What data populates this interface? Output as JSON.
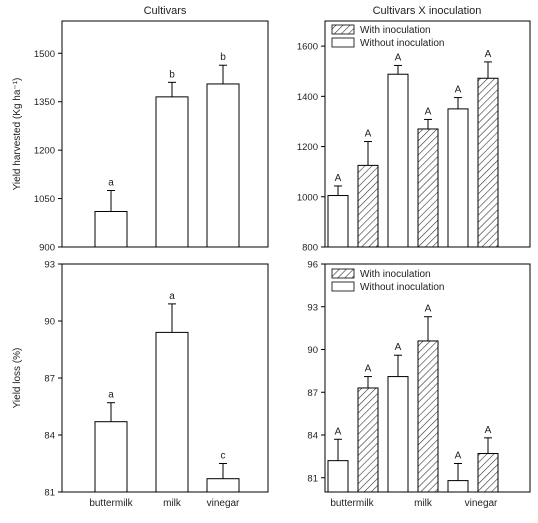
{
  "chart_data": [
    {
      "type": "bar",
      "title": "Cultivars",
      "ylabel": "Yield harvested (Kg ha⁻¹)",
      "ylim": [
        900,
        1600
      ],
      "yticks": [
        "900",
        "1050",
        "1200",
        "1350",
        "1500"
      ],
      "categories": [
        "buttermilk",
        "milk",
        "vinegar"
      ],
      "values": [
        1010,
        1365,
        1405
      ],
      "errors": [
        65,
        45,
        58
      ],
      "letters": [
        "a",
        "b",
        "b"
      ]
    },
    {
      "type": "bar",
      "title": "Cultivars X inoculation",
      "ylabel": "",
      "ylim": [
        800,
        1700
      ],
      "yticks": [
        "800",
        "1000",
        "1200",
        "1400",
        "1600"
      ],
      "categories": [
        "buttermilk",
        "milk",
        "vinegar"
      ],
      "legend": [
        "With inoculation",
        "Without inoculation"
      ],
      "series": [
        {
          "name": "Without inoculation",
          "values": [
            1005,
            1488,
            1350
          ],
          "errors": [
            38,
            35,
            45
          ],
          "letters": [
            "A",
            "A",
            "A"
          ]
        },
        {
          "name": "With inoculation",
          "values": [
            1125,
            1270,
            1472
          ],
          "errors": [
            95,
            38,
            65
          ],
          "letters": [
            "A",
            "A",
            "A"
          ]
        }
      ]
    },
    {
      "type": "bar",
      "title": "",
      "ylabel": "Yield loss (%)",
      "ylim": [
        81,
        93
      ],
      "yticks": [
        "81",
        "84",
        "87",
        "90",
        "93"
      ],
      "categories": [
        "buttermilk",
        "milk",
        "vinegar"
      ],
      "values": [
        84.7,
        89.4,
        81.7
      ],
      "errors": [
        1.0,
        1.5,
        0.8
      ],
      "letters": [
        "a",
        "a",
        "c"
      ]
    },
    {
      "type": "bar",
      "title": "",
      "ylabel": "",
      "ylim": [
        80,
        96
      ],
      "yticks": [
        "81",
        "84",
        "87",
        "90",
        "93",
        "96"
      ],
      "categories": [
        "buttermilk",
        "milk",
        "vinegar"
      ],
      "legend": [
        "With inoculation",
        "Without inoculation"
      ],
      "series": [
        {
          "name": "Without inoculation",
          "values": [
            82.2,
            88.1,
            80.8
          ],
          "errors": [
            1.5,
            1.5,
            1.2
          ],
          "letters": [
            "A",
            "A",
            "A"
          ]
        },
        {
          "name": "With inoculation",
          "values": [
            87.3,
            90.6,
            82.7
          ],
          "errors": [
            0.8,
            1.7,
            1.1
          ],
          "letters": [
            "A",
            "A",
            "A"
          ]
        }
      ]
    }
  ]
}
